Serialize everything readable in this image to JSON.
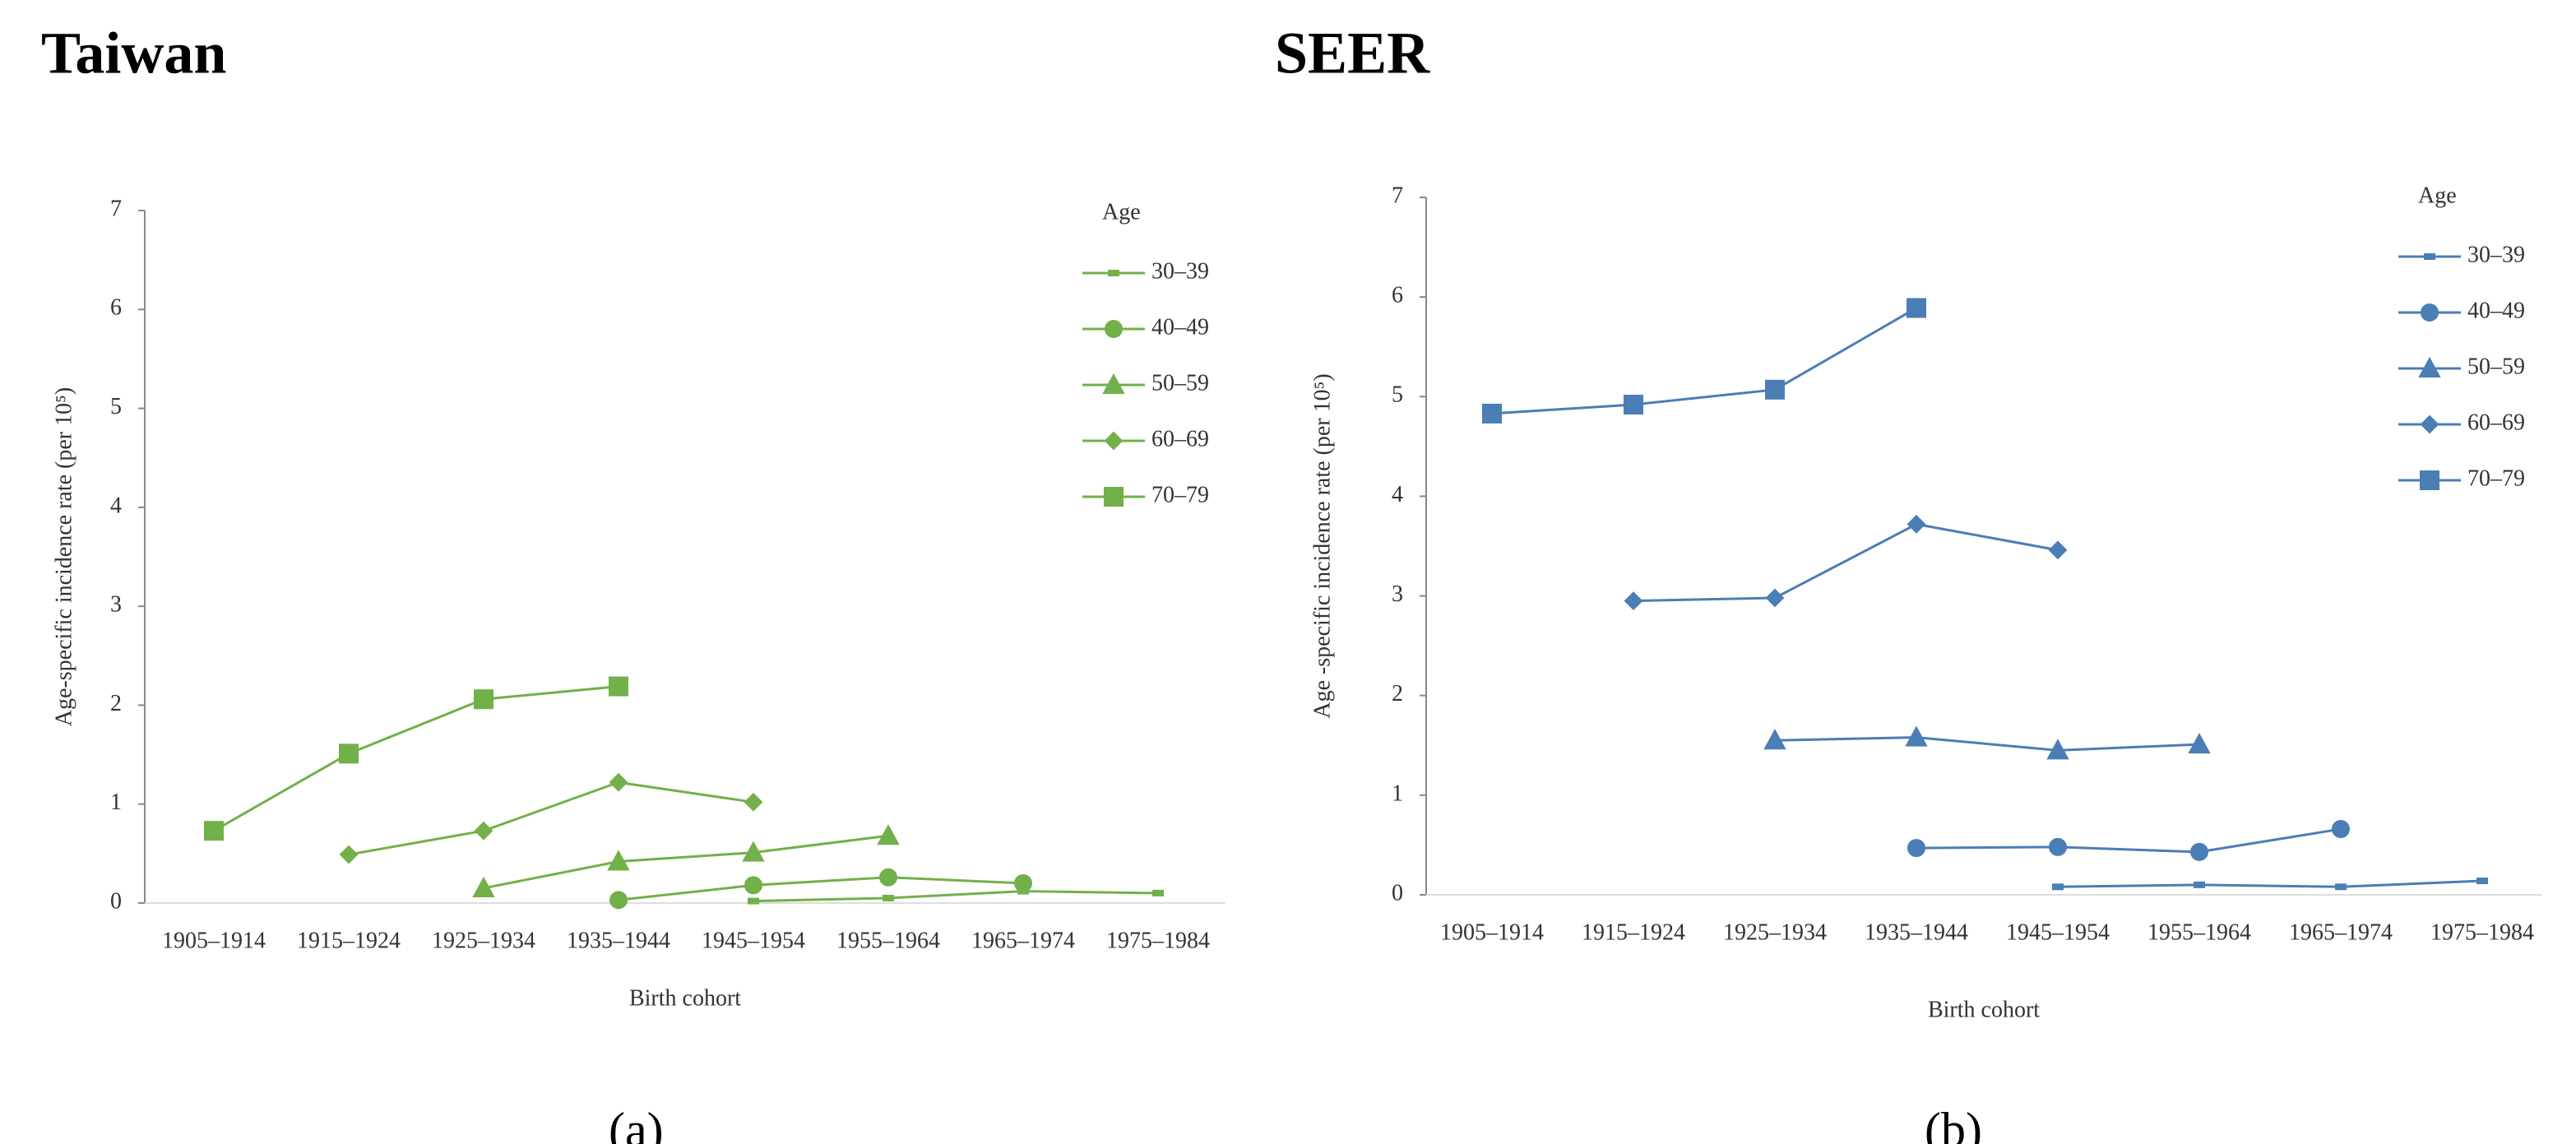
{
  "chart_data": [
    {
      "type": "line",
      "title": "Taiwan",
      "caption": "(a)",
      "x_label": "Birth cohort",
      "y_label": "Age-specific incidence rate (per 10⁵)",
      "legend_title": "Age",
      "legend": "upper right",
      "color": "#72b04a",
      "grid": false,
      "categories": [
        "1905–1914",
        "1915–1924",
        "1925–1934",
        "1935–1944",
        "1945–1954",
        "1955–1964",
        "1965–1974",
        "1975–1984"
      ],
      "ylim": [
        0,
        7
      ],
      "yticks": [
        0,
        1,
        2,
        3,
        4,
        5,
        6,
        7
      ],
      "series": [
        {
          "name": "30–39",
          "marker": "dash",
          "values": [
            null,
            null,
            null,
            null,
            0.02,
            0.05,
            0.12,
            0.1
          ]
        },
        {
          "name": "40–49",
          "marker": "circle",
          "values": [
            null,
            null,
            null,
            0.03,
            0.18,
            0.26,
            0.2,
            null
          ]
        },
        {
          "name": "50–59",
          "marker": "triangle",
          "values": [
            null,
            null,
            0.15,
            0.42,
            0.51,
            0.68,
            null,
            null
          ]
        },
        {
          "name": "60–69",
          "marker": "diamond",
          "values": [
            null,
            0.49,
            0.73,
            1.22,
            1.02,
            null,
            null,
            null
          ]
        },
        {
          "name": "70–79",
          "marker": "square",
          "values": [
            0.73,
            1.51,
            2.06,
            2.19,
            null,
            null,
            null,
            null
          ]
        }
      ]
    },
    {
      "type": "line",
      "title": "SEER",
      "caption": "(b)",
      "x_label": "Birth cohort",
      "y_label": "Age -specific incidence rate (per 10⁵)",
      "legend_title": "Age",
      "legend": "upper right",
      "color": "#4a7eb5",
      "grid": false,
      "categories": [
        "1905–1914",
        "1915–1924",
        "1925–1934",
        "1935–1944",
        "1945–1954",
        "1955–1964",
        "1965–1974",
        "1975–1984"
      ],
      "ylim": [
        0,
        7
      ],
      "yticks": [
        0,
        1,
        2,
        3,
        4,
        5,
        6,
        7
      ],
      "series": [
        {
          "name": "30–39",
          "marker": "dash",
          "values": [
            null,
            null,
            null,
            null,
            0.08,
            0.1,
            0.08,
            0.14
          ]
        },
        {
          "name": "40–49",
          "marker": "circle",
          "values": [
            null,
            null,
            null,
            0.47,
            0.48,
            0.43,
            0.66,
            null
          ]
        },
        {
          "name": "50–59",
          "marker": "triangle",
          "values": [
            null,
            null,
            1.55,
            1.58,
            1.45,
            1.51,
            null,
            null
          ]
        },
        {
          "name": "60–69",
          "marker": "diamond",
          "values": [
            null,
            2.95,
            2.98,
            3.72,
            3.46,
            null,
            null,
            null
          ]
        },
        {
          "name": "70–79",
          "marker": "square",
          "values": [
            4.83,
            4.92,
            5.07,
            5.89,
            null,
            null,
            null,
            null
          ]
        }
      ]
    }
  ]
}
